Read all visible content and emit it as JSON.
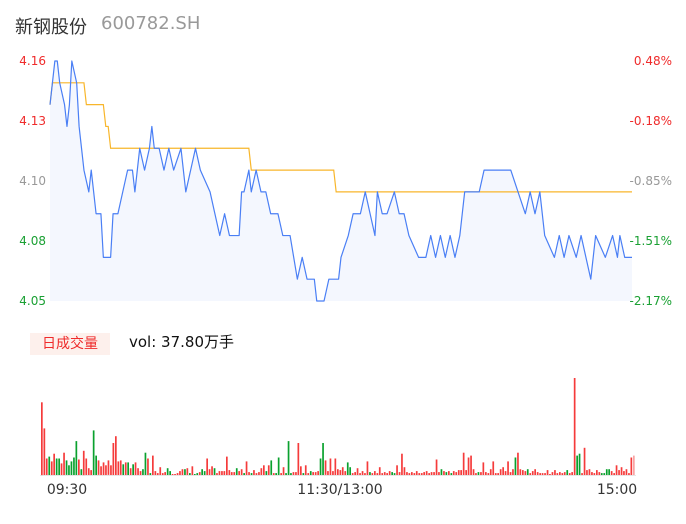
{
  "header": {
    "name": "新钢股份",
    "code": "600782.SH"
  },
  "volume_panel": {
    "tag": "日成交量",
    "summary": "vol: 37.80万手"
  },
  "colors": {
    "price_line": "#4a7ff5",
    "avg_line": "#f8b62b",
    "up": "#f53b3b",
    "down": "#0aa12e",
    "up_text": "#ef2b2b",
    "flat_text": "#999999",
    "down_text": "#1aa033",
    "fill": "#f4f7fe"
  },
  "chart_data": [
    {
      "type": "line",
      "prev_close": 4.14,
      "ylim": [
        4.05,
        4.16
      ],
      "left_ticks": [
        "4.16",
        "4.13",
        "4.10",
        "4.08",
        "4.05"
      ],
      "right_ticks": [
        "0.48%",
        "-0.18%",
        "-0.85%",
        "-1.51%",
        "-2.17%"
      ],
      "x_ticks": [
        "09:30",
        "11:30/13:00",
        "15:00"
      ],
      "price": [
        [
          "09:30",
          4.14
        ],
        [
          "09:32",
          4.16
        ],
        [
          "09:33",
          4.16
        ],
        [
          "09:34",
          4.15
        ],
        [
          "09:36",
          4.14
        ],
        [
          "09:37",
          4.13
        ],
        [
          "09:38",
          4.14
        ],
        [
          "09:39",
          4.16
        ],
        [
          "09:41",
          4.15
        ],
        [
          "09:42",
          4.13
        ],
        [
          "09:44",
          4.11
        ],
        [
          "09:46",
          4.1
        ],
        [
          "09:47",
          4.11
        ],
        [
          "09:49",
          4.09
        ],
        [
          "09:51",
          4.09
        ],
        [
          "09:52",
          4.07
        ],
        [
          "09:55",
          4.07
        ],
        [
          "09:56",
          4.09
        ],
        [
          "09:58",
          4.09
        ],
        [
          "10:00",
          4.1
        ],
        [
          "10:02",
          4.11
        ],
        [
          "10:04",
          4.11
        ],
        [
          "10:05",
          4.1
        ],
        [
          "10:07",
          4.12
        ],
        [
          "10:09",
          4.11
        ],
        [
          "10:11",
          4.12
        ],
        [
          "10:12",
          4.13
        ],
        [
          "10:13",
          4.12
        ],
        [
          "10:15",
          4.12
        ],
        [
          "10:17",
          4.11
        ],
        [
          "10:19",
          4.12
        ],
        [
          "10:21",
          4.11
        ],
        [
          "10:24",
          4.12
        ],
        [
          "10:26",
          4.1
        ],
        [
          "10:28",
          4.11
        ],
        [
          "10:30",
          4.12
        ],
        [
          "10:32",
          4.11
        ],
        [
          "10:36",
          4.1
        ],
        [
          "10:38",
          4.09
        ],
        [
          "10:40",
          4.08
        ],
        [
          "10:42",
          4.09
        ],
        [
          "10:44",
          4.08
        ],
        [
          "10:48",
          4.08
        ],
        [
          "10:49",
          4.1
        ],
        [
          "10:50",
          4.1
        ],
        [
          "10:52",
          4.11
        ],
        [
          "10:53",
          4.1
        ],
        [
          "10:55",
          4.11
        ],
        [
          "10:57",
          4.1
        ],
        [
          "10:59",
          4.1
        ],
        [
          "11:01",
          4.09
        ],
        [
          "11:04",
          4.09
        ],
        [
          "11:06",
          4.08
        ],
        [
          "11:09",
          4.08
        ],
        [
          "11:12",
          4.06
        ],
        [
          "11:14",
          4.07
        ],
        [
          "11:16",
          4.06
        ],
        [
          "11:19",
          4.06
        ],
        [
          "11:20",
          4.05
        ],
        [
          "11:23",
          4.05
        ],
        [
          "11:25",
          4.06
        ],
        [
          "11:29",
          4.06
        ],
        [
          "11:30",
          4.07
        ],
        [
          "13:03",
          4.08
        ],
        [
          "13:05",
          4.09
        ],
        [
          "13:08",
          4.09
        ],
        [
          "13:10",
          4.1
        ],
        [
          "13:12",
          4.09
        ],
        [
          "13:14",
          4.08
        ],
        [
          "13:15",
          4.1
        ],
        [
          "13:17",
          4.09
        ],
        [
          "13:19",
          4.09
        ],
        [
          "13:22",
          4.1
        ],
        [
          "13:24",
          4.09
        ],
        [
          "13:26",
          4.09
        ],
        [
          "13:28",
          4.08
        ],
        [
          "13:32",
          4.07
        ],
        [
          "13:35",
          4.07
        ],
        [
          "13:37",
          4.08
        ],
        [
          "13:39",
          4.07
        ],
        [
          "13:41",
          4.08
        ],
        [
          "13:43",
          4.07
        ],
        [
          "13:45",
          4.08
        ],
        [
          "13:47",
          4.07
        ],
        [
          "13:49",
          4.08
        ],
        [
          "13:51",
          4.1
        ],
        [
          "13:57",
          4.1
        ],
        [
          "13:59",
          4.11
        ],
        [
          "14:10",
          4.11
        ],
        [
          "14:13",
          4.1
        ],
        [
          "14:16",
          4.09
        ],
        [
          "14:18",
          4.1
        ],
        [
          "14:20",
          4.09
        ],
        [
          "14:22",
          4.1
        ],
        [
          "14:24",
          4.08
        ],
        [
          "14:28",
          4.07
        ],
        [
          "14:30",
          4.08
        ],
        [
          "14:32",
          4.07
        ],
        [
          "14:34",
          4.08
        ],
        [
          "14:37",
          4.07
        ],
        [
          "14:39",
          4.08
        ],
        [
          "14:41",
          4.07
        ],
        [
          "14:43",
          4.06
        ],
        [
          "14:45",
          4.08
        ],
        [
          "14:49",
          4.07
        ],
        [
          "14:52",
          4.08
        ],
        [
          "14:54",
          4.07
        ],
        [
          "14:55",
          4.08
        ],
        [
          "14:57",
          4.07
        ],
        [
          "15:00",
          4.07
        ]
      ],
      "avg_price": [
        [
          "09:30",
          4.14
        ],
        [
          "09:31",
          4.15
        ],
        [
          "09:44",
          4.15
        ],
        [
          "09:45",
          4.14
        ],
        [
          "09:52",
          4.14
        ],
        [
          "09:53",
          4.13
        ],
        [
          "09:54",
          4.13
        ],
        [
          "09:55",
          4.12
        ],
        [
          "10:52",
          4.12
        ],
        [
          "10:53",
          4.11
        ],
        [
          "11:27",
          4.11
        ],
        [
          "11:28",
          4.1
        ],
        [
          "15:00",
          4.1
        ]
      ]
    },
    {
      "type": "bar",
      "volume_relative": [
        75,
        48,
        17,
        19,
        14,
        22,
        17,
        17,
        12,
        23,
        15,
        10,
        14,
        18,
        35,
        16,
        6,
        25,
        17,
        7,
        5,
        46,
        20,
        15,
        9,
        13,
        10,
        15,
        10,
        33,
        40,
        14,
        15,
        11,
        13,
        13,
        7,
        11,
        13,
        7,
        4,
        6,
        23,
        17,
        2,
        20,
        4,
        2,
        8,
        2,
        3,
        7,
        4,
        1,
        1,
        2,
        4,
        6,
        6,
        7,
        2,
        9,
        1,
        2,
        3,
        6,
        4,
        17,
        6,
        9,
        7,
        2,
        4,
        4,
        4,
        19,
        5,
        3,
        3,
        7,
        4,
        6,
        2,
        14,
        3,
        2,
        5,
        2,
        3,
        7,
        10,
        4,
        10,
        15,
        2,
        2,
        18,
        2,
        8,
        2,
        35,
        2,
        3,
        3,
        33,
        9,
        2,
        10,
        2,
        4,
        3,
        3,
        4,
        17,
        33,
        15,
        4,
        17,
        4,
        17,
        6,
        5,
        8,
        4,
        13,
        8,
        2,
        3,
        7,
        2,
        4,
        2,
        14,
        3,
        2,
        4,
        2,
        8,
        2,
        3,
        2,
        4,
        3,
        2,
        10,
        3,
        22,
        8,
        3,
        2,
        3,
        2,
        4,
        2,
        2,
        3,
        4,
        2,
        3,
        3,
        16,
        3,
        6,
        4,
        3,
        4,
        2,
        4,
        3,
        5,
        5,
        23,
        5,
        18,
        20,
        6,
        2,
        3,
        3,
        13,
        3,
        2,
        6,
        14,
        2,
        2,
        6,
        8,
        4,
        14,
        3,
        6,
        18,
        23,
        6,
        5,
        4,
        6,
        2,
        4,
        6,
        3,
        2,
        2,
        2,
        5,
        1,
        3,
        5,
        2,
        3,
        2,
        3,
        5,
        2,
        3,
        100,
        20,
        22,
        2,
        28,
        5,
        6,
        3,
        2,
        5,
        3,
        2,
        2,
        6,
        6,
        4,
        2,
        10,
        5,
        8,
        4,
        6,
        2,
        18,
        20
      ],
      "direction": "uuuduudduuddddduduuuudduuuuuuuuuudududuuudduduuuuuudduuuuudududdudduuuduuuuuuuuduuduuduuuuudududduuddduuuuduuduuudduuuuuuuuudduuuuuuuduuuuuuuudduuuuuuuuuuuuuuuuuudududuuuuuuuuuuduuuuuuuuuuuuuuduuuuduuuuuuuuuuuuuuuduuudduuuuuuuudddduuuuuuuuuduuuuuuuuuuuuu"
    }
  ]
}
